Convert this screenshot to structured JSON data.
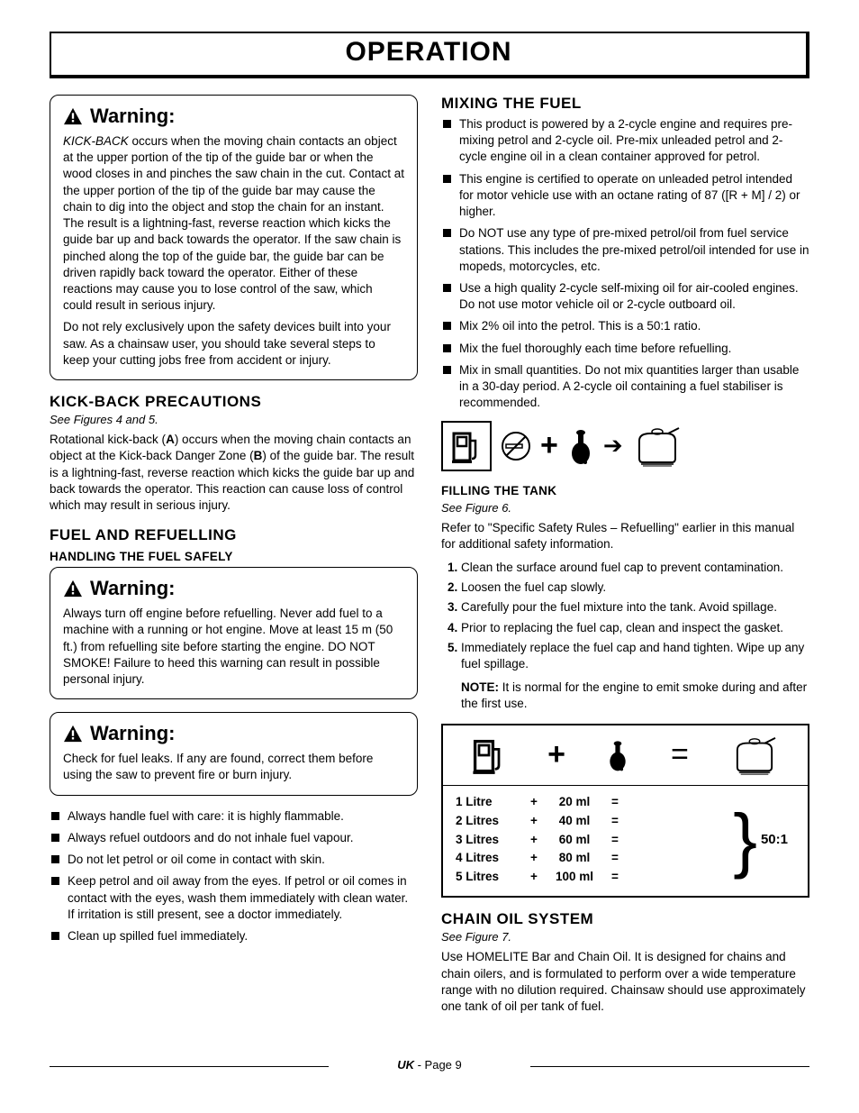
{
  "title": "OPERATION",
  "left": {
    "warning1": {
      "head": "Warning:",
      "p1_html": "<i>KICK-BACK</i> occurs when the moving chain contacts an object at the upper portion of the tip of the guide bar or when the wood closes in and pinches the saw chain in the cut. Contact at the upper portion of the tip of the guide bar may cause the chain to dig into the object and stop the chain for an instant. The result is a lightning-fast, reverse reaction which kicks the guide bar up and back towards the operator. If the saw chain is pinched along the top of the guide bar, the guide bar can be driven rapidly back toward the operator. Either of these reactions may cause you to lose control of the saw, which could result in serious injury.",
      "p2": "Do not rely exclusively upon the safety devices built into your saw. As a chainsaw user, you should take several steps to keep your cutting jobs free from accident or injury."
    },
    "kickback": {
      "head": "KICK-BACK PRECAUTIONS",
      "fig": "See Figures 4 and 5.",
      "body_html": "Rotational kick-back (<b>A</b>) occurs when the moving chain contacts an object at the Kick-back Danger Zone (<b>B</b>) of the guide bar. The result is a lightning-fast, reverse reaction which kicks the guide bar up and back towards the operator. This reaction can cause loss of control which may result in serious injury."
    },
    "fuel": {
      "head": "FUEL AND REFUELLING",
      "sub": "HANDLING THE FUEL SAFELY"
    },
    "warning2": {
      "head": "Warning:",
      "p1": "Always turn off engine before refuelling. Never add fuel to a machine with a running or hot engine. Move at least 15 m (50 ft.) from refuelling site before starting the engine. DO NOT SMOKE! Failure to heed this warning can result in possible personal injury."
    },
    "warning3": {
      "head": "Warning:",
      "p1": "Check for fuel leaks. If any are found, correct them before using the saw to prevent fire or burn injury."
    },
    "bullets": [
      "Always handle fuel with care: it is highly flammable.",
      "Always refuel outdoors and do not inhale fuel vapour.",
      "Do not let petrol or oil come in contact with skin.",
      "Keep petrol and oil away from the eyes. If petrol or oil comes in contact with the eyes, wash them immediately with clean water. If irritation is still present, see a doctor immediately.",
      "Clean up spilled fuel immediately."
    ]
  },
  "right": {
    "mixing": {
      "head": "MIXING THE FUEL",
      "bullets": [
        "This product is powered by a 2-cycle engine and requires pre-mixing petrol and 2-cycle oil. Pre-mix unleaded petrol and 2-cycle engine oil in a clean container approved for petrol.",
        "This engine is certified to operate on unleaded petrol intended for motor vehicle use with an octane rating of 87 ([R + M] / 2) or higher.",
        "Do NOT use any type of pre-mixed petrol/oil from fuel service stations. This includes the pre-mixed petrol/oil intended for use in mopeds, motorcycles, etc.",
        "Use a high quality 2-cycle self-mixing oil for air-cooled engines. Do not use motor vehicle oil or 2-cycle outboard oil.",
        "Mix 2% oil into the petrol. This is a 50:1 ratio.",
        "Mix the fuel thoroughly each time before refuelling.",
        "Mix in small quantities. Do not mix quantities larger than usable in a 30-day period. A 2-cycle oil containing a fuel stabiliser is recommended."
      ]
    },
    "filling": {
      "head": "FILLING THE TANK",
      "fig": "See Figure 6.",
      "intro": "Refer to \"Specific Safety Rules – Refuelling\" earlier in this manual for additional safety information.",
      "steps": [
        "Clean the surface around fuel cap to prevent contamination.",
        "Loosen the fuel cap slowly.",
        "Carefully pour the fuel mixture into the tank. Avoid spillage.",
        "Prior to replacing the fuel cap, clean and inspect the gasket.",
        "Immediately replace the fuel cap and hand tighten. Wipe up any fuel spillage."
      ],
      "note_html": "<b>NOTE:</b> It is normal for the engine to emit smoke during and after the first use."
    },
    "mix_table": {
      "rows": [
        {
          "petrol": "1 Litre",
          "oil": "20 ml"
        },
        {
          "petrol": "2 Litres",
          "oil": "40 ml"
        },
        {
          "petrol": "3 Litres",
          "oil": "60 ml"
        },
        {
          "petrol": "4 Litres",
          "oil": "80 ml"
        },
        {
          "petrol": "5 Litres",
          "oil": "100 ml"
        }
      ],
      "ratio": "50:1",
      "plus": "+",
      "equals": "="
    },
    "chainoil": {
      "head": "CHAIN OIL SYSTEM",
      "fig": "See Figure 7.",
      "body": "Use HOMELITE Bar and Chain Oil. It is designed for chains and chain oilers, and is formulated to perform over a wide temperature range with no dilution required. Chainsaw should use approximately one tank of oil per tank of fuel."
    }
  },
  "footer": {
    "uk": "UK",
    "rest": " - Page 9"
  },
  "colors": {
    "text": "#000000",
    "bg": "#ffffff"
  }
}
